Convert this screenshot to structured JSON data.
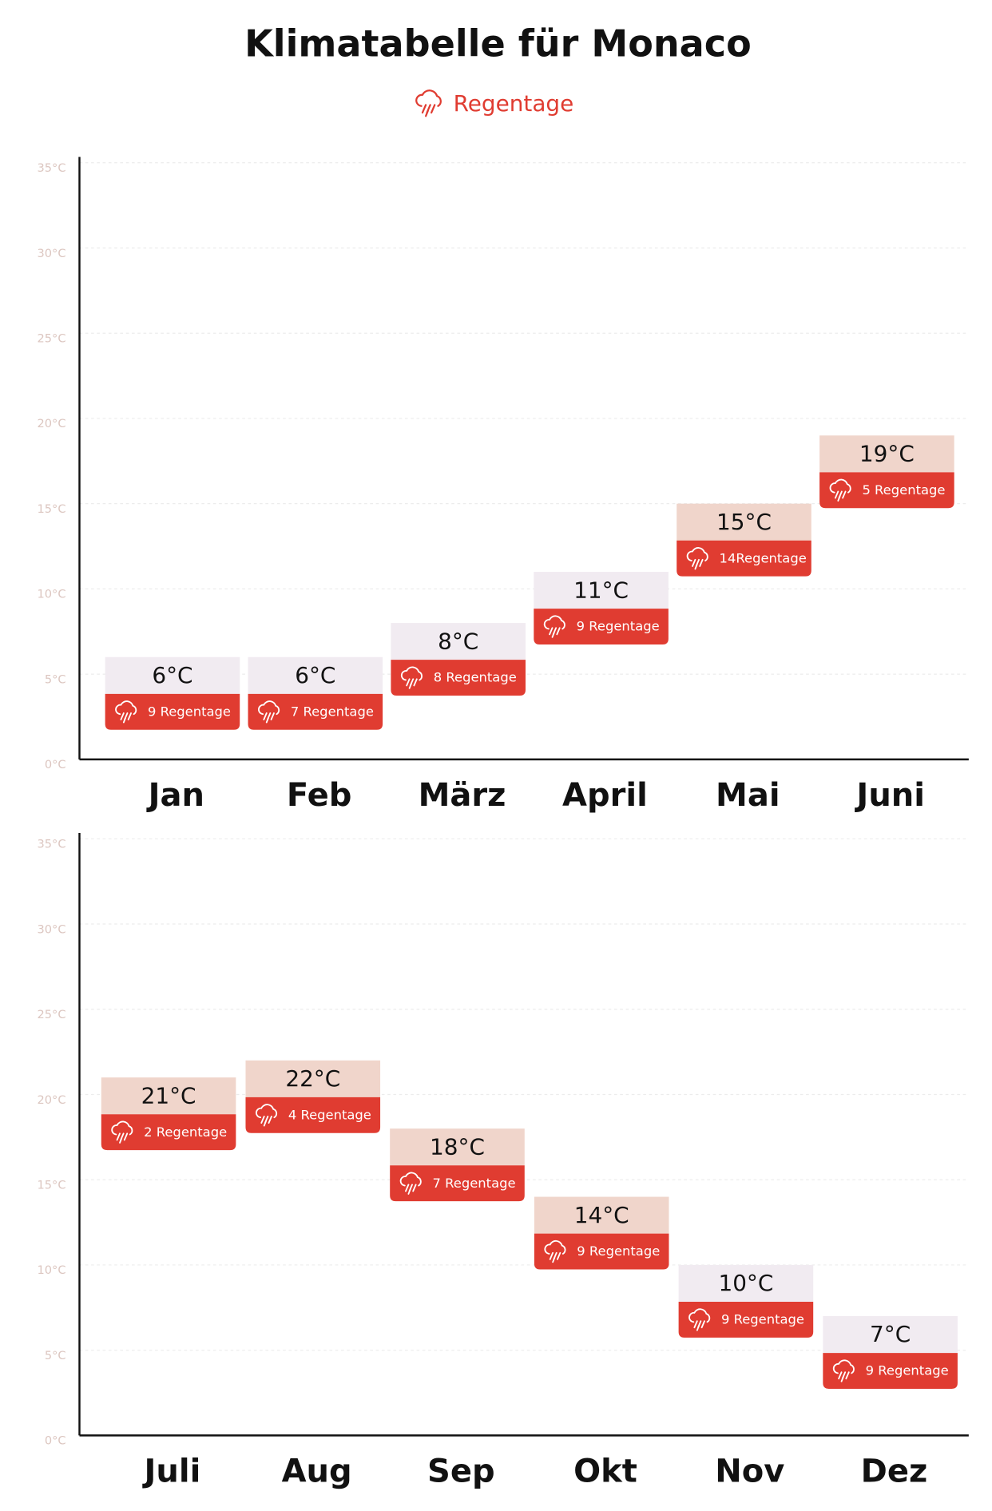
{
  "chart_data": [
    {
      "type": "bar",
      "title": "Klimatabelle für Monaco",
      "categories": [
        "Jan",
        "Feb",
        "März",
        "April",
        "Mai",
        "Juni"
      ],
      "values": [
        6,
        6,
        8,
        11,
        15,
        19
      ],
      "value_labels": [
        "6°C",
        "6°C",
        "8°C",
        "11°C",
        "15°C",
        "19°C"
      ],
      "colors": [
        "#f1ebf1",
        "#f1ebf1",
        "#f1ebf1",
        "#f1ebf1",
        "#f0d5cb",
        "#f0d5cb"
      ],
      "rain": {
        "name": "Regentage",
        "color": "#e03c31",
        "values": [
          9,
          7,
          8,
          9,
          14,
          5
        ],
        "value_labels": [
          "9 Regentage",
          "7 Regentage",
          "8 Regentage",
          "9 Regentage",
          "14Regentage",
          "5 Regentage"
        ]
      },
      "ylim": [
        0,
        35
      ],
      "yticks": [
        {
          "value": 0,
          "label": "0°C"
        },
        {
          "value": 5,
          "label": "5°C"
        },
        {
          "value": 10,
          "label": "10°C"
        },
        {
          "value": 15,
          "label": "15°C"
        },
        {
          "value": 20,
          "label": "20°C"
        },
        {
          "value": 25,
          "label": "25°C"
        },
        {
          "value": 30,
          "label": "30°C"
        },
        {
          "value": 35,
          "label": "35°C"
        }
      ],
      "grid": true
    },
    {
      "type": "bar",
      "categories": [
        "Juli",
        "Aug",
        "Sep",
        "Okt",
        "Nov",
        "Dez"
      ],
      "values": [
        21,
        22,
        18,
        14,
        10,
        7
      ],
      "value_labels": [
        "21°C",
        "22°C",
        "18°C",
        "14°C",
        "10°C",
        "7°C"
      ],
      "colors": [
        "#f0d5cb",
        "#f0d5cb",
        "#f0d5cb",
        "#f0d5cb",
        "#f1ebf1",
        "#f1ebf1"
      ],
      "rain": {
        "color": "#e03c31",
        "values": [
          2,
          4,
          7,
          9,
          9,
          9
        ],
        "value_labels": [
          "2 Regentage",
          "4 Regentage",
          "7 Regentage",
          "9 Regentage",
          "9 Regentage",
          "9 Regentage"
        ]
      },
      "ylim": [
        0,
        35
      ],
      "yticks": [
        {
          "value": 0,
          "label": "0°C"
        },
        {
          "value": 5,
          "label": "5°C"
        },
        {
          "value": 10,
          "label": "10°C"
        },
        {
          "value": 15,
          "label": "15°C"
        },
        {
          "value": 20,
          "label": "20°C"
        },
        {
          "value": 25,
          "label": "25°C"
        },
        {
          "value": 30,
          "label": "30°C"
        },
        {
          "value": 35,
          "label": "35°C"
        }
      ],
      "grid": true
    }
  ]
}
